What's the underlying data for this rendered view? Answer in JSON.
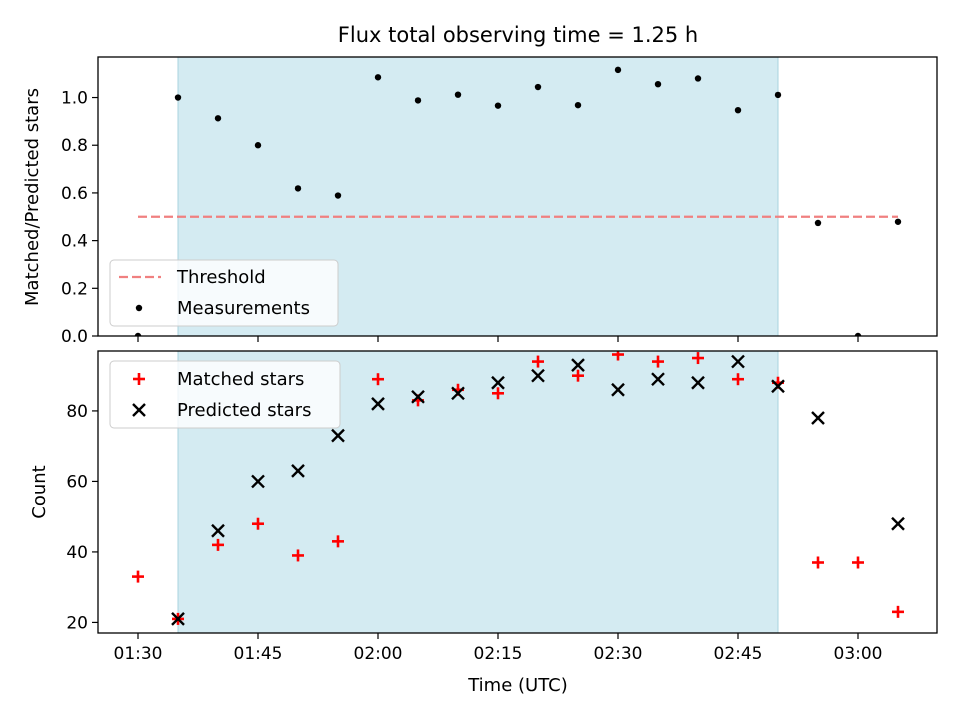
{
  "chart_data": {
    "title": "Flux total observing time = 1.25 h",
    "xlabel": "Time (UTC)",
    "x_ticks": [
      "01:30",
      "01:45",
      "02:00",
      "02:15",
      "02:30",
      "02:45",
      "03:00"
    ],
    "x": [
      "01:30",
      "01:35",
      "01:40",
      "01:45",
      "01:50",
      "01:55",
      "02:00",
      "02:05",
      "02:10",
      "02:15",
      "02:20",
      "02:25",
      "02:30",
      "02:35",
      "02:40",
      "02:45",
      "02:50",
      "02:55",
      "03:00",
      "03:05"
    ],
    "observing_window": {
      "start": "01:35",
      "end": "02:50",
      "color": "#d4ebf2"
    },
    "subplots": [
      {
        "type": "scatter",
        "ylabel": "Matched/Predicted stars",
        "ylim": [
          0,
          1.17
        ],
        "y_ticks": [
          0.0,
          0.2,
          0.4,
          0.6,
          0.8,
          1.0
        ],
        "y_tick_labels": [
          "0.0",
          "0.2",
          "0.4",
          "0.6",
          "0.8",
          "1.0"
        ],
        "legend_position": "lower-left",
        "threshold": {
          "name": "Threshold",
          "value": 0.5,
          "x_range": [
            "01:30",
            "03:05"
          ],
          "color": "#f08080"
        },
        "series": [
          {
            "name": "Measurements",
            "marker": "dot",
            "color": "#000000",
            "values": [
              0.0,
              1.0,
              0.913,
              0.8,
              0.619,
              0.589,
              1.085,
              0.988,
              1.012,
              0.966,
              1.044,
              0.968,
              1.116,
              1.056,
              1.08,
              0.947,
              1.011,
              0.474,
              0.0,
              0.479
            ]
          }
        ]
      },
      {
        "type": "scatter",
        "ylabel": "Count",
        "ylim": [
          17,
          97
        ],
        "y_ticks": [
          20,
          40,
          60,
          80
        ],
        "y_tick_labels": [
          "20",
          "40",
          "60",
          "80"
        ],
        "legend_position": "upper-left",
        "series": [
          {
            "name": "Matched stars",
            "marker": "plus",
            "color": "#ff0000",
            "values": [
              33,
              21,
              42,
              48,
              39,
              43,
              89,
              83,
              86,
              85,
              94,
              90,
              96,
              94,
              95,
              89,
              88,
              37,
              37,
              23
            ]
          },
          {
            "name": "Predicted stars",
            "marker": "x",
            "color": "#000000",
            "values": [
              null,
              21,
              46,
              60,
              63,
              73,
              82,
              84,
              85,
              88,
              90,
              93,
              86,
              89,
              88,
              94,
              87,
              78,
              null,
              48
            ]
          }
        ]
      }
    ]
  }
}
